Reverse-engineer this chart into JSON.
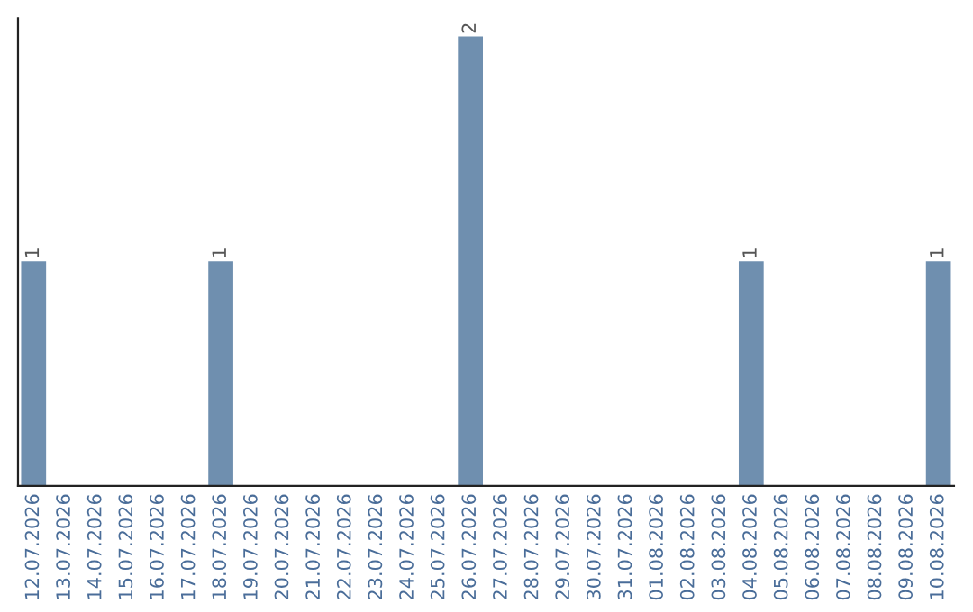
{
  "chart_data": {
    "type": "bar",
    "categories": [
      "12.07.2026",
      "13.07.2026",
      "14.07.2026",
      "15.07.2026",
      "16.07.2026",
      "17.07.2026",
      "18.07.2026",
      "19.07.2026",
      "20.07.2026",
      "21.07.2026",
      "22.07.2026",
      "23.07.2026",
      "24.07.2026",
      "25.07.2026",
      "26.07.2026",
      "27.07.2026",
      "28.07.2026",
      "29.07.2026",
      "30.07.2026",
      "31.07.2026",
      "01.08.2026",
      "02.08.2026",
      "03.08.2026",
      "04.08.2026",
      "05.08.2026",
      "06.08.2026",
      "07.08.2026",
      "08.08.2026",
      "09.08.2026",
      "10.08.2026"
    ],
    "values": [
      1,
      0,
      0,
      0,
      0,
      0,
      1,
      0,
      0,
      0,
      0,
      0,
      0,
      0,
      2,
      0,
      0,
      0,
      0,
      0,
      0,
      0,
      0,
      1,
      0,
      0,
      0,
      0,
      0,
      1
    ],
    "value_labels": [
      "1",
      null,
      null,
      null,
      null,
      null,
      "1",
      null,
      null,
      null,
      null,
      null,
      null,
      null,
      "2",
      null,
      null,
      null,
      null,
      null,
      null,
      null,
      null,
      "1",
      null,
      null,
      null,
      null,
      null,
      "1"
    ],
    "color": "#6f8faf",
    "tick_labels": "x",
    "grid": false,
    "legend": false
  }
}
